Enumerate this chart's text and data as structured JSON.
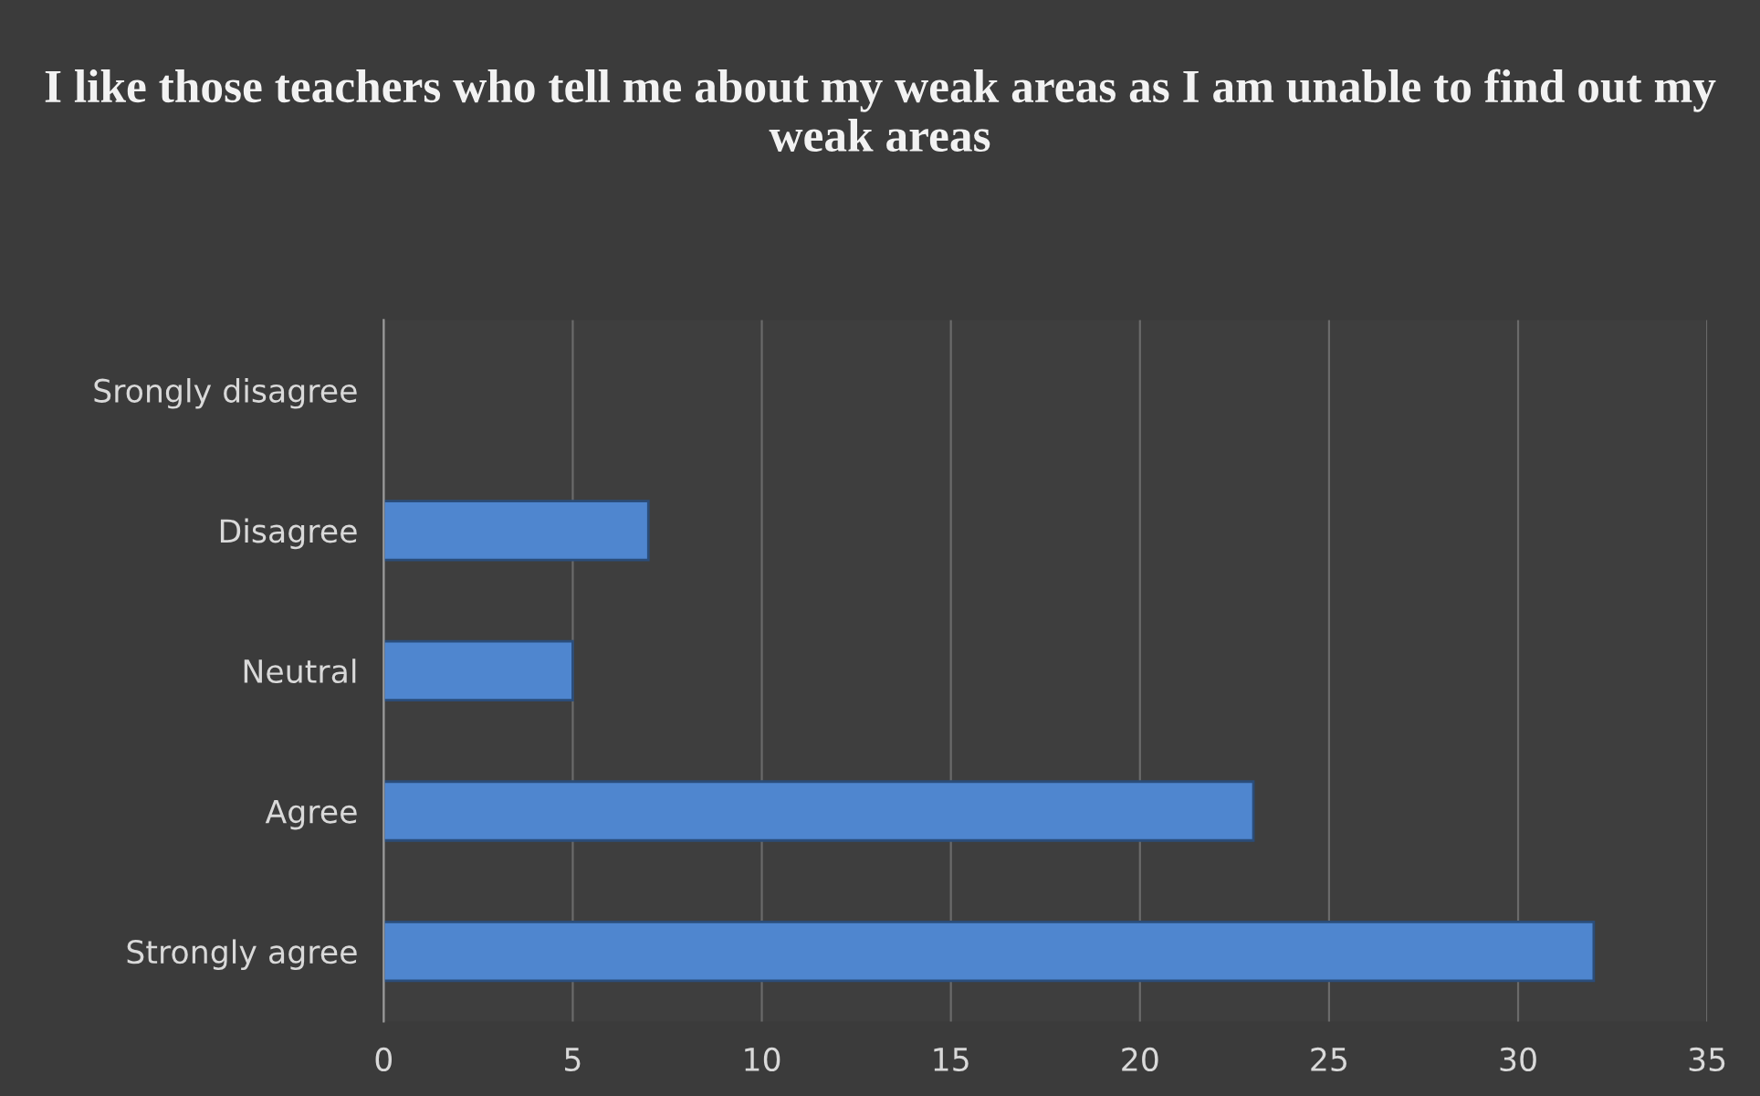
{
  "chart_data": {
    "type": "bar",
    "orientation": "horizontal",
    "title": "I like those teachers who tell me about my weak areas as I am unable to find out my weak areas",
    "categories": [
      "Srongly disagree",
      "Disagree",
      "Neutral",
      "Agree",
      "Strongly agree"
    ],
    "values": [
      0,
      7,
      5,
      23,
      32
    ],
    "color": "#4f86cf",
    "xlim": [
      0,
      35
    ],
    "xticks": [
      0,
      5,
      10,
      15,
      20,
      25,
      30,
      35
    ],
    "grid": "x",
    "legend": false
  }
}
